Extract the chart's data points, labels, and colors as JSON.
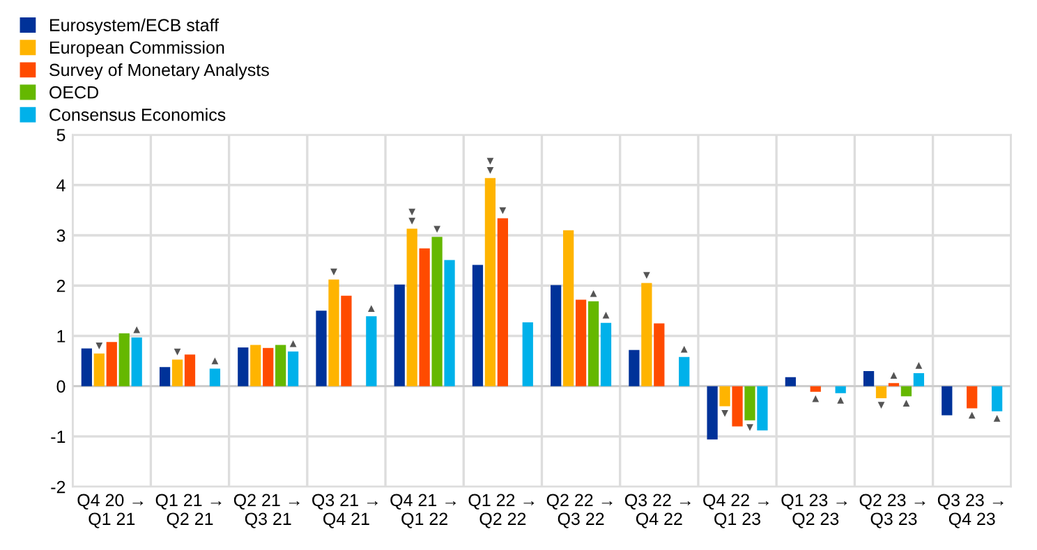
{
  "chart_data": {
    "type": "bar",
    "categories": [
      "Q4 20 →\nQ1 21",
      "Q1 21 →\nQ2 21",
      "Q2 21 →\nQ3 21",
      "Q3 21 →\nQ4 21",
      "Q4 21 →\nQ1 22",
      "Q1 22 →\nQ2 22",
      "Q2 22 →\nQ3 22",
      "Q3 22 →\nQ4 22",
      "Q4 22 →\nQ1 23",
      "Q1 23 →\nQ2 23",
      "Q2 23 →\nQ3 23",
      "Q3 23 →\nQ4 23"
    ],
    "series": [
      {
        "name": "Eurosystem/ECB staff",
        "color": "#003299",
        "values": [
          0.75,
          0.38,
          0.77,
          1.5,
          2.02,
          2.41,
          2.01,
          0.72,
          -1.06,
          0.18,
          0.3,
          -0.58
        ]
      },
      {
        "name": "European Commission",
        "color": "#ffb400",
        "values": [
          0.65,
          0.53,
          0.82,
          2.12,
          3.13,
          4.14,
          3.1,
          2.05,
          -0.4,
          null,
          -0.24,
          null
        ],
        "value_labels": [
          "▼",
          "▼",
          null,
          "▼",
          "▼\n▼",
          "▼\n▼",
          null,
          "▼",
          "▼",
          null,
          "▼",
          null
        ]
      },
      {
        "name": "Survey of Monetary Analysts",
        "color": "#ff4b00",
        "values": [
          0.88,
          0.63,
          0.76,
          1.8,
          2.74,
          3.34,
          1.72,
          1.25,
          -0.8,
          -0.11,
          0.06,
          -0.44
        ],
        "value_labels": [
          null,
          null,
          null,
          null,
          null,
          "▼",
          null,
          null,
          null,
          "▲",
          "▲",
          "▲"
        ]
      },
      {
        "name": "OECD",
        "color": "#65b800",
        "values": [
          1.05,
          null,
          0.82,
          null,
          2.97,
          null,
          1.69,
          null,
          -0.68,
          null,
          -0.2,
          null
        ],
        "value_labels": [
          null,
          null,
          null,
          null,
          "▼",
          null,
          "▲",
          null,
          "▼",
          null,
          "▲",
          null
        ]
      },
      {
        "name": "Consensus Economics",
        "color": "#00b1ea",
        "values": [
          0.97,
          0.35,
          0.69,
          1.39,
          2.51,
          1.27,
          1.26,
          0.58,
          -0.88,
          -0.14,
          0.26,
          -0.5
        ],
        "value_labels": [
          "▲",
          "▲",
          "▲",
          "▲",
          null,
          null,
          "▲",
          "▲",
          null,
          "▲",
          "▲",
          "▲"
        ]
      }
    ],
    "ylim": [
      -2,
      5
    ],
    "yticks": [
      -2,
      -1,
      0,
      1,
      2,
      3,
      4,
      5
    ],
    "grid": true,
    "legend": "top left"
  }
}
